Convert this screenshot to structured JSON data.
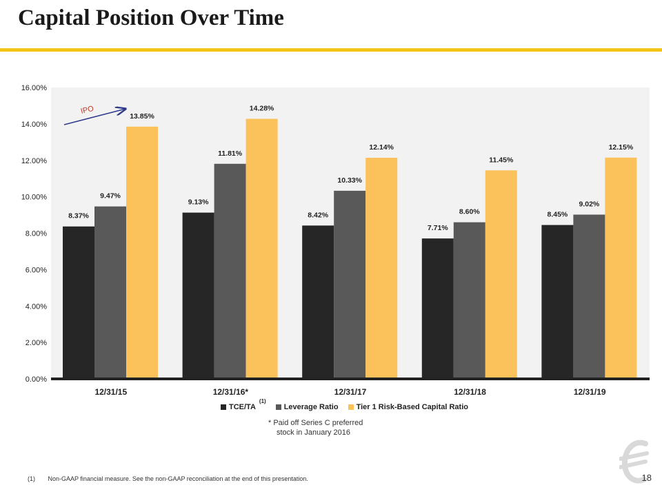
{
  "title": "Capital Position Over Time",
  "colors": {
    "accent_rule": "#f2c518",
    "tce_ta": "#262626",
    "leverage": "#595959",
    "tier1": "#fbc15a",
    "plot_bg": "#f2f2f2",
    "ipo_arrow": "#2e3a8c",
    "ipo_text": "#c0392b"
  },
  "chart_data": {
    "type": "bar",
    "categories": [
      "12/31/15",
      "12/31/16*",
      "12/31/17",
      "12/31/18",
      "12/31/19"
    ],
    "series": [
      {
        "name": "TCE/TA",
        "values": [
          8.37,
          9.13,
          8.42,
          7.71,
          8.45
        ],
        "labels": [
          "8.37%",
          "9.13%",
          "8.42%",
          "7.71%",
          "8.45%"
        ]
      },
      {
        "name": "Leverage Ratio",
        "values": [
          9.47,
          11.81,
          10.33,
          8.6,
          9.02
        ],
        "labels": [
          "9.47%",
          "11.81%",
          "10.33%",
          "8.60%",
          "9.02%"
        ]
      },
      {
        "name": "Tier 1 Risk-Based Capital Ratio",
        "values": [
          13.85,
          14.28,
          12.14,
          11.45,
          12.15
        ],
        "labels": [
          "13.85%",
          "14.28%",
          "12.14%",
          "11.45%",
          "12.15%"
        ]
      }
    ],
    "yticks": [
      0,
      2,
      4,
      6,
      8,
      10,
      12,
      14,
      16
    ],
    "ytick_labels": [
      "0.00%",
      "2.00%",
      "4.00%",
      "6.00%",
      "8.00%",
      "10.00%",
      "12.00%",
      "14.00%",
      "16.00%"
    ],
    "ylim": [
      0,
      16
    ],
    "grid": false,
    "legend_position": "bottom",
    "annotation": {
      "text": "IPO",
      "category_index": 0
    }
  },
  "legend": {
    "tce_ta": "TCE/TA",
    "tce_ta_sup": "(1)",
    "leverage": "Leverage Ratio",
    "tier1": "Tier 1 Risk-Based Capital Ratio"
  },
  "note": {
    "line1": "* Paid off Series C preferred",
    "line2": "stock in January 2016"
  },
  "footnote": {
    "num": "(1)",
    "text": "Non-GAAP financial measure. See the non-GAAP reconciliation at the end of this presentation."
  },
  "page_number": "18"
}
